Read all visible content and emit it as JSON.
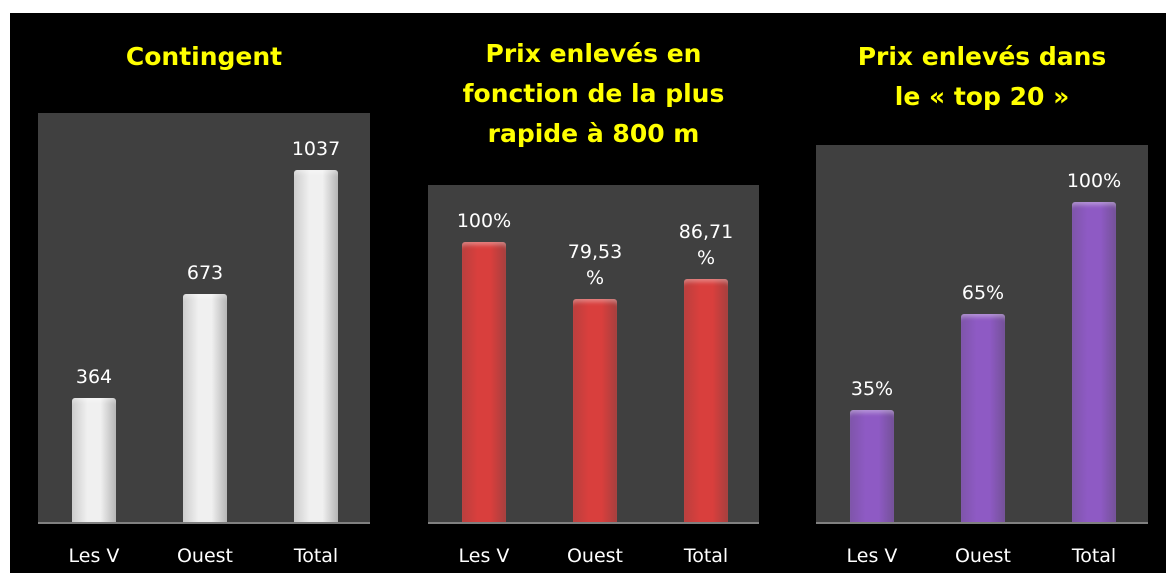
{
  "chart_data": [
    {
      "type": "bar",
      "title": [
        "Contingent"
      ],
      "categories": [
        "Les V",
        "Ouest",
        "Total"
      ],
      "values": [
        364,
        673,
        1037
      ],
      "color": "#f0f0f0"
    },
    {
      "type": "bar",
      "title": [
        "Prix enlevés en",
        "fonction de la plus",
        "rapide à 800 m"
      ],
      "categories": [
        "Les V",
        "Ouest",
        "Total"
      ],
      "values": [
        100,
        79.53,
        86.71
      ],
      "value_labels": [
        "100%",
        "79,53 %",
        "86,71 %"
      ],
      "color": "#d93f3d"
    },
    {
      "type": "bar",
      "title": [
        "Prix enlevés dans",
        "le « top 20 »"
      ],
      "categories": [
        "Les V",
        "Ouest",
        "Total"
      ],
      "values": [
        35,
        65,
        100
      ],
      "value_labels": [
        "35%",
        "65%",
        "100%"
      ],
      "color": "#8e5ac4"
    }
  ]
}
